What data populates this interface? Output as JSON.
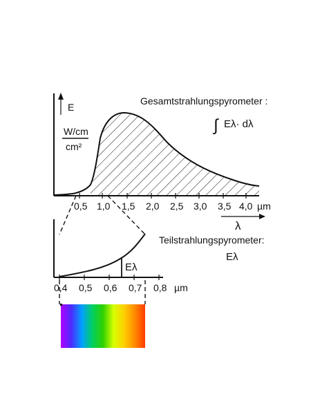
{
  "labels": {
    "top_quantity": "E",
    "top_unit_numerator": "W/cm",
    "top_unit_denominator": "cm²",
    "top_title": "Gesamtstrahlungspyrometer :",
    "top_formula_integral": "∫",
    "top_formula_expr": "Eλ· dλ",
    "x_unit_top": "µm",
    "lambda_symbol": "λ",
    "bottom_title": "Teilstrahlungspyrometer:",
    "bottom_symbol_right": "Eλ",
    "bottom_marker_label": "Eλ",
    "x_unit_bottom": "µm"
  },
  "top_ticks": [
    "0,5",
    "1,0",
    "1,5",
    "2,0",
    "2,5",
    "3,0",
    "3,5",
    "4,0"
  ],
  "bottom_ticks": [
    "0,4",
    "0,5",
    "0,6",
    "0,7",
    "0,8"
  ],
  "spectrum_colors": [
    "#b000ff",
    "#4b2cff",
    "#00a0ff",
    "#00d060",
    "#2fd000",
    "#d6ff00",
    "#ffd000",
    "#ff8c00",
    "#ff3a00"
  ]
}
